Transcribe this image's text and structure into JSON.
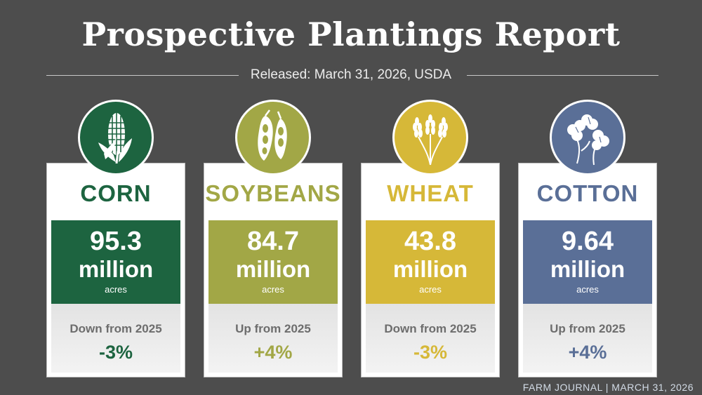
{
  "header": {
    "title": "Prospective Plantings Report",
    "subtitle": "Released: March 31, 2026, USDA"
  },
  "crops": [
    {
      "name": "CORN",
      "value": "95.3",
      "unit": "million",
      "subunit": "acres",
      "change_label": "Down from 2025",
      "change": "-3%",
      "color": "#1d6440",
      "icon": "corn-icon"
    },
    {
      "name": "SOYBEANS",
      "value": "84.7",
      "unit": "million",
      "subunit": "acres",
      "change_label": "Up from 2025",
      "change": "+4%",
      "color": "#a2a746",
      "icon": "soybean-icon"
    },
    {
      "name": "WHEAT",
      "value": "43.8",
      "unit": "million",
      "subunit": "acres",
      "change_label": "Down from 2025",
      "change": "-3%",
      "color": "#d6b838",
      "icon": "wheat-icon"
    },
    {
      "name": "COTTON",
      "value": "9.64",
      "unit": "million",
      "subunit": "acres",
      "change_label": "Up from 2025",
      "change": "+4%",
      "color": "#5a6f97",
      "icon": "cotton-icon"
    }
  ],
  "footer": {
    "source": "FARM JOURNAL | MARCH 31, 2026"
  }
}
